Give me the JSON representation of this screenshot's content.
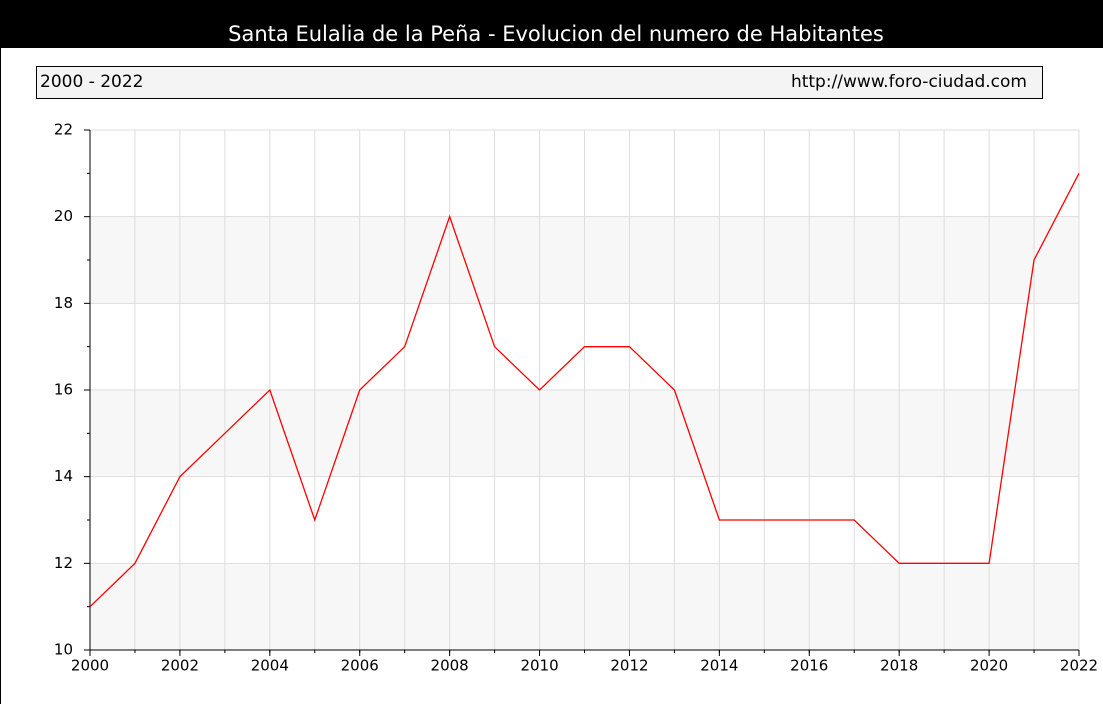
{
  "chart_data": {
    "type": "line",
    "title": "Santa Eulalia de la Peña - Evolucion del numero de Habitantes",
    "period": "2000 - 2022",
    "source": "http://www.foro-ciudad.com",
    "x": [
      2000,
      2001,
      2002,
      2003,
      2004,
      2005,
      2006,
      2007,
      2008,
      2009,
      2010,
      2011,
      2012,
      2013,
      2014,
      2015,
      2016,
      2017,
      2018,
      2019,
      2020,
      2021,
      2022
    ],
    "series": [
      {
        "name": "Habitantes",
        "color": "#ff0000",
        "values": [
          11,
          12,
          14,
          15,
          16,
          13,
          16,
          17,
          20,
          17,
          16,
          17,
          17,
          16,
          13,
          13,
          13,
          13,
          12,
          12,
          12,
          19,
          21
        ]
      }
    ],
    "xlim": [
      2000,
      2022
    ],
    "xticks": [
      2000,
      2002,
      2004,
      2006,
      2008,
      2010,
      2012,
      2014,
      2016,
      2018,
      2020,
      2022
    ],
    "ylim": [
      10,
      22
    ],
    "yticks": [
      10,
      12,
      14,
      16,
      18,
      20,
      22
    ],
    "grid": true
  }
}
